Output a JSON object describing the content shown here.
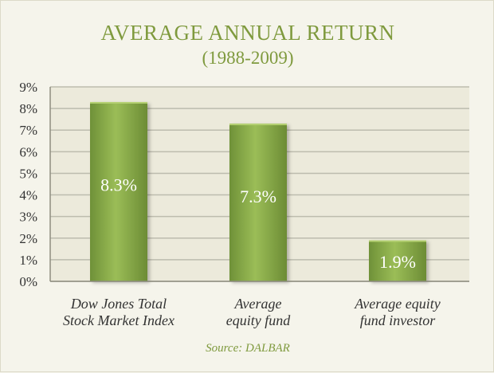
{
  "title": "AVERAGE ANNUAL RETURN",
  "subtitle": "(1988-2009)",
  "source": "Source: DALBAR",
  "colors": {
    "accent": "#7f9a3e",
    "bar": "#8db24a",
    "plot_bg": "#eceadb",
    "grid": "#bdbcae"
  },
  "chart_data": {
    "type": "bar",
    "title": "AVERAGE ANNUAL RETURN",
    "subtitle": "(1988-2009)",
    "categories": [
      "Dow Jones Total\nStock Market Index",
      "Average\nequity fund",
      "Average equity\nfund investor"
    ],
    "values": [
      8.3,
      7.3,
      1.9
    ],
    "value_labels": [
      "8.3%",
      "7.3%",
      "1.9%"
    ],
    "y_ticks": [
      "0%",
      "1%",
      "2%",
      "3%",
      "4%",
      "5%",
      "6%",
      "7%",
      "8%",
      "9%"
    ],
    "ylim": [
      0,
      9
    ],
    "grid": true,
    "legend": "none"
  }
}
